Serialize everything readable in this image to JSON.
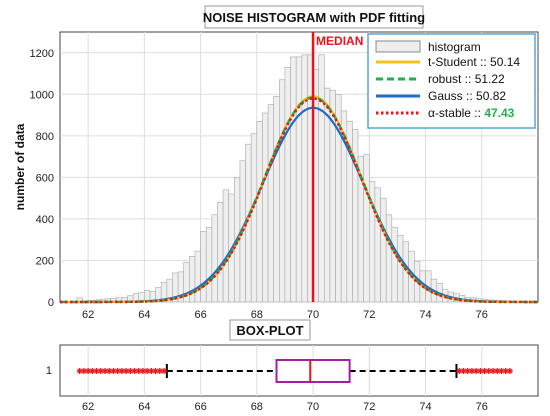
{
  "chart_data": [
    {
      "type": "bar",
      "title": "NOISE HISTOGRAM with PDF fitting",
      "ylabel": "number of data",
      "xlabel": "",
      "xlim": [
        61,
        78
      ],
      "ylim": [
        0,
        1300
      ],
      "xticks": [
        "62",
        "64",
        "66",
        "68",
        "70",
        "72",
        "74",
        "76"
      ],
      "yticks": [
        "0",
        "200",
        "400",
        "600",
        "800",
        "1000",
        "1200"
      ],
      "grid": true,
      "median": 70.0,
      "median_label": "MEDIAN",
      "histogram": {
        "name": "histogram",
        "bin_width": 0.2,
        "x": [
          61.5,
          61.7,
          61.9,
          62.1,
          62.3,
          62.5,
          62.7,
          62.9,
          63.1,
          63.3,
          63.5,
          63.7,
          63.9,
          64.1,
          64.3,
          64.5,
          64.7,
          64.9,
          65.1,
          65.3,
          65.5,
          65.7,
          65.9,
          66.1,
          66.3,
          66.5,
          66.7,
          66.9,
          67.1,
          67.3,
          67.5,
          67.7,
          67.9,
          68.1,
          68.3,
          68.5,
          68.7,
          68.9,
          69.1,
          69.3,
          69.5,
          69.7,
          69.9,
          70.1,
          70.3,
          70.5,
          70.7,
          70.9,
          71.1,
          71.3,
          71.5,
          71.7,
          71.9,
          72.1,
          72.3,
          72.5,
          72.7,
          72.9,
          73.1,
          73.3,
          73.5,
          73.7,
          73.9,
          74.1,
          74.3,
          74.5,
          74.7,
          74.9,
          75.1,
          75.3,
          75.5,
          75.7,
          75.9,
          76.1,
          76.3,
          76.5,
          76.7,
          76.9,
          77.1,
          77.3,
          77.5
        ],
        "values": [
          3,
          20,
          5,
          8,
          10,
          12,
          15,
          18,
          20,
          22,
          30,
          40,
          45,
          55,
          50,
          70,
          95,
          110,
          140,
          145,
          190,
          220,
          245,
          340,
          360,
          420,
          480,
          540,
          520,
          600,
          680,
          760,
          810,
          870,
          910,
          950,
          990,
          1070,
          1130,
          1180,
          1180,
          1190,
          1190,
          1120,
          1190,
          1030,
          1020,
          1000,
          920,
          870,
          830,
          700,
          710,
          580,
          550,
          500,
          420,
          360,
          320,
          290,
          245,
          195,
          150,
          150,
          110,
          90,
          60,
          48,
          40,
          32,
          22,
          20,
          16,
          14,
          10,
          8,
          7,
          6,
          5,
          4,
          3
        ]
      },
      "series": [
        {
          "name": "t-Student",
          "value_label": "50.14",
          "color": "#f7c11c",
          "style": "solid",
          "peak": 990,
          "mu": 70.0,
          "sigma": 1.72
        },
        {
          "name": "robust",
          "value_label": "51.22",
          "color": "#22b14c",
          "style": "dashed",
          "peak": 985,
          "mu": 70.0,
          "sigma": 1.73
        },
        {
          "name": "Gauss",
          "value_label": "50.82",
          "color": "#1f6cc4",
          "style": "solid",
          "peak": 935,
          "mu": 70.0,
          "sigma": 1.8
        },
        {
          "name": "α-stable",
          "value_label": "47.43",
          "value_color": "#22b14c",
          "color": "#e8141b",
          "style": "dotted",
          "peak": 980,
          "mu": 70.0,
          "sigma": 1.72
        }
      ],
      "legend_position": "top-right"
    },
    {
      "type": "box",
      "title": "BOX-PLOT",
      "xlim": [
        61,
        78
      ],
      "xticks": [
        "62",
        "64",
        "66",
        "68",
        "70",
        "72",
        "74",
        "76"
      ],
      "ytick": "1",
      "box": {
        "q1": 68.7,
        "median": 69.9,
        "q3": 71.3,
        "whisker_low": 64.8,
        "whisker_high": 75.1
      },
      "outliers_low": [
        61.7,
        61.85,
        62.0,
        62.15,
        62.3,
        62.45,
        62.6,
        62.75,
        62.9,
        63.05,
        63.2,
        63.35,
        63.5,
        63.65,
        63.8,
        63.95,
        64.1,
        64.25,
        64.4,
        64.55,
        64.7
      ],
      "outliers_high": [
        75.2,
        75.35,
        75.5,
        75.65,
        75.8,
        75.95,
        76.1,
        76.25,
        76.4,
        76.55,
        76.7,
        76.85,
        77.0
      ],
      "colors": {
        "box": "#a0229e",
        "median": "#e8141b",
        "whisker": "#000000",
        "outlier": "#e8141b"
      }
    }
  ]
}
